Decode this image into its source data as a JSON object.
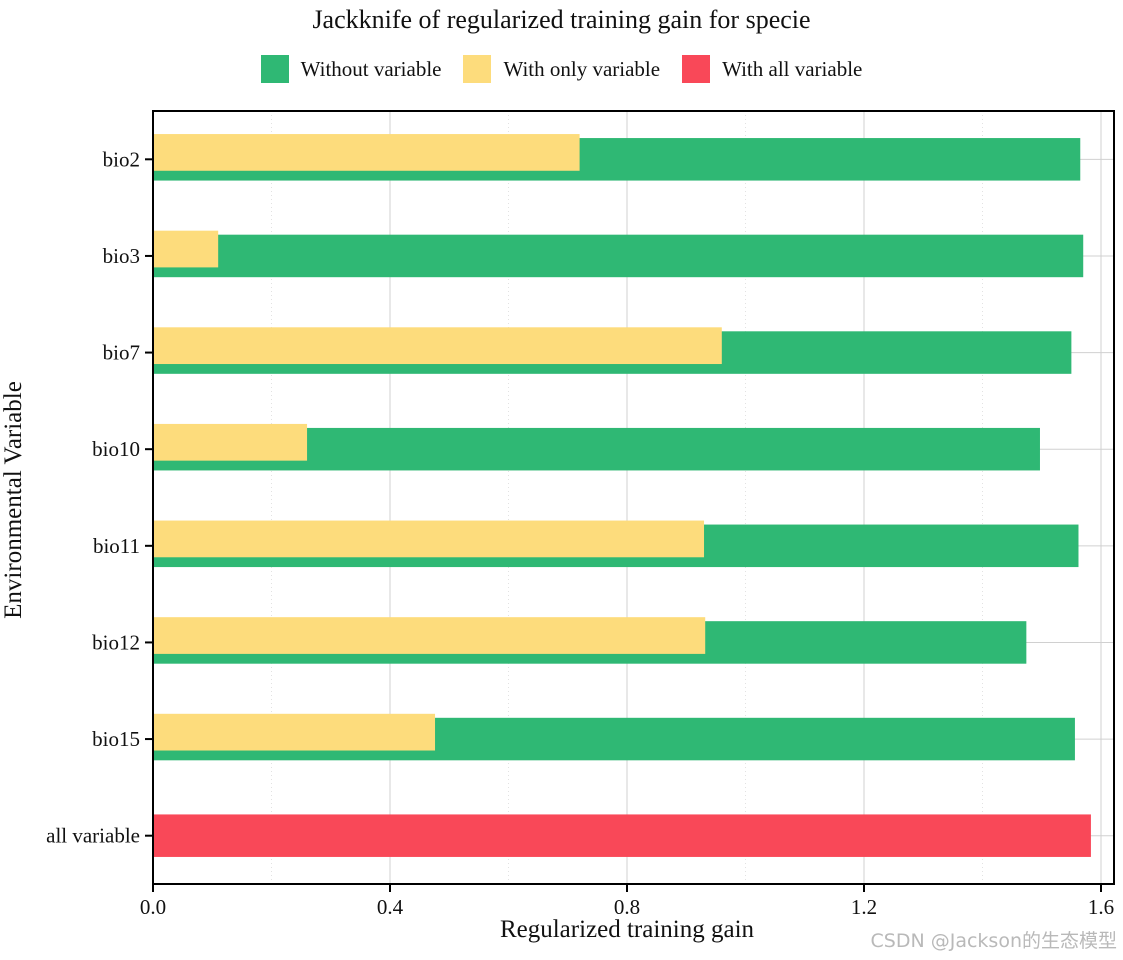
{
  "chart_data": {
    "type": "bar",
    "title": "Jackknife of regularized training gain for specie",
    "xlabel": "Regularized training gain",
    "ylabel": "Environmental Variable",
    "categories": [
      "bio2",
      "bio3",
      "bio7",
      "bio10",
      "bio11",
      "bio12",
      "bio15",
      "all variable"
    ],
    "series": [
      {
        "name": "Without variable",
        "color": "#2fb874",
        "values": [
          1.565,
          1.57,
          1.55,
          1.497,
          1.562,
          1.474,
          1.556,
          null
        ]
      },
      {
        "name": "With only variable",
        "color": "#fddc7c",
        "values": [
          0.72,
          0.11,
          0.96,
          0.26,
          0.93,
          0.932,
          0.476,
          null
        ]
      },
      {
        "name": "With all variable",
        "color": "#f94858",
        "values": [
          null,
          null,
          null,
          null,
          null,
          null,
          null,
          1.583
        ]
      }
    ],
    "xlim": [
      0,
      1.6
    ],
    "xticks": [
      "0.0",
      "0.4",
      "0.8",
      "1.2",
      "1.6"
    ],
    "grid": true,
    "legend_position": "top"
  },
  "watermark": "CSDN @Jackson的生态模型"
}
